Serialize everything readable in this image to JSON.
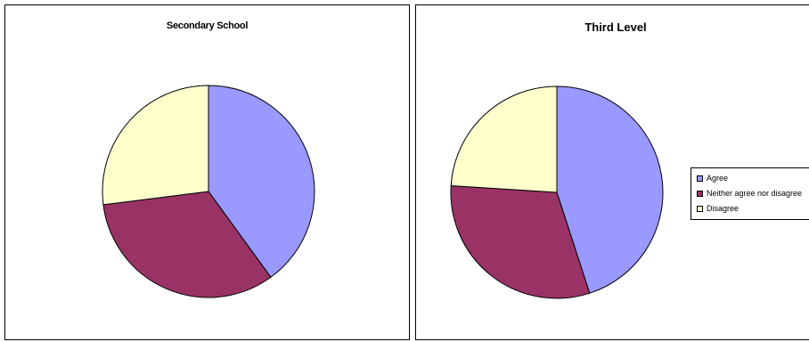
{
  "colors": {
    "agree": "#9999FF",
    "neither": "#993366",
    "disagree": "#FFFFCC",
    "outline": "#000000"
  },
  "legend": {
    "placement": "right",
    "items": [
      {
        "label": "Agree",
        "color": "#9999FF"
      },
      {
        "label": "Neither agree nor disagree",
        "color": "#993366"
      },
      {
        "label": "Disagree",
        "color": "#FFFFCC"
      }
    ]
  },
  "chart_data": [
    {
      "type": "pie",
      "title": "Secondary School",
      "categories": [
        "Agree",
        "Neither agree nor disagree",
        "Disagree"
      ],
      "values": [
        40,
        33,
        27
      ],
      "start_angle_deg": 0,
      "direction": "clockwise"
    },
    {
      "type": "pie",
      "title": "Third Level",
      "categories": [
        "Agree",
        "Neither agree nor disagree",
        "Disagree"
      ],
      "values": [
        45,
        31,
        24
      ],
      "start_angle_deg": 0,
      "direction": "clockwise"
    }
  ]
}
